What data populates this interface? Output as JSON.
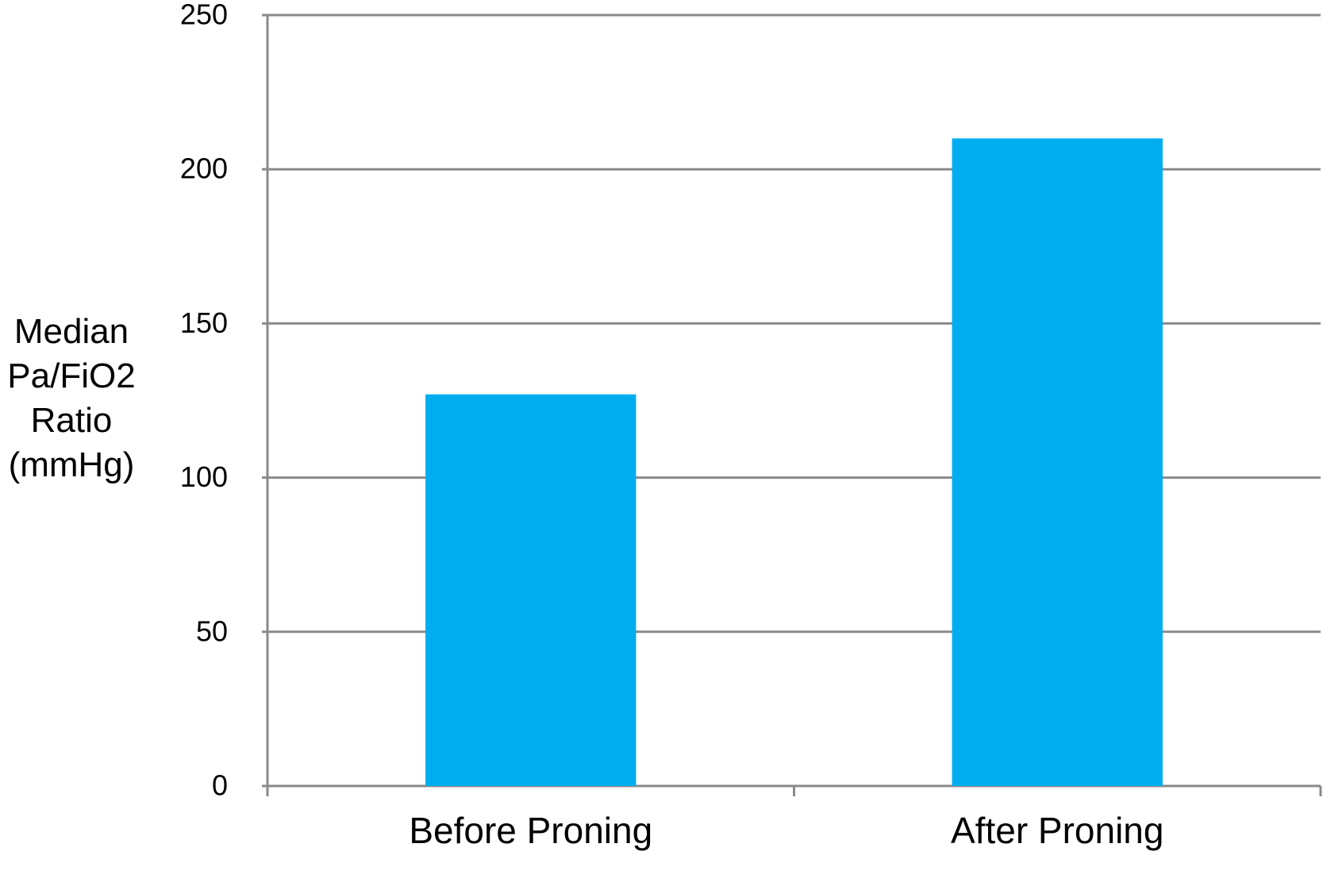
{
  "chart_data": {
    "type": "bar",
    "y_label": "Median Pa/FiO2 Ratio (mmHg)",
    "categories": [
      "Before Proning",
      "After Proning"
    ],
    "values": [
      127,
      210
    ],
    "color": "#00aeef",
    "ylim": [
      0,
      250
    ],
    "yticks": [
      0,
      50,
      100,
      150,
      200,
      250
    ],
    "grid": true
  }
}
